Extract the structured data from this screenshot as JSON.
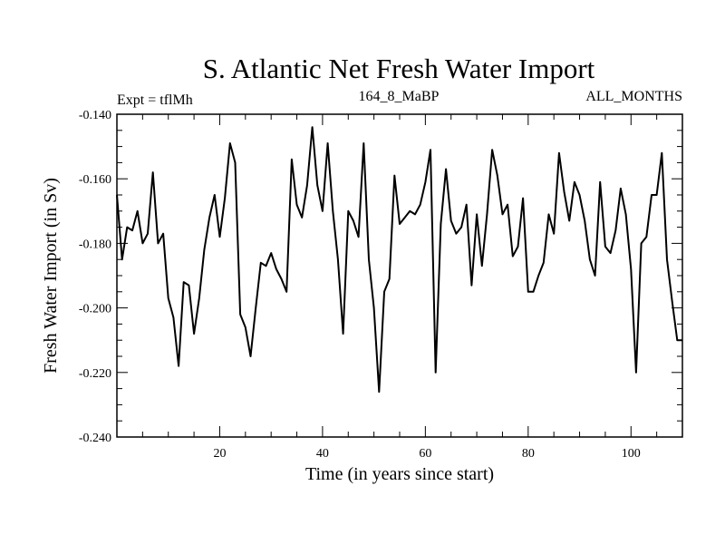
{
  "chart_data": {
    "type": "line",
    "title": "S. Atlantic Net Fresh Water Import",
    "left_subtitle": "Expt = tflMh",
    "center_subtitle": "164_8_MaBP",
    "right_subtitle": "ALL_MONTHS",
    "xlabel": "Time (in years since start)",
    "ylabel": "Fresh Water Import (in Sv)",
    "xlim": [
      0,
      110
    ],
    "ylim": [
      -0.24,
      -0.14
    ],
    "xticks_major": [
      20,
      40,
      60,
      80,
      100
    ],
    "xticks_minor": [
      5,
      10,
      15,
      25,
      30,
      35,
      45,
      50,
      55,
      65,
      70,
      75,
      85,
      90,
      95,
      105
    ],
    "yticks_major": [
      -0.24,
      -0.22,
      -0.2,
      -0.18,
      -0.16,
      -0.14
    ],
    "yticks_minor": [
      -0.235,
      -0.23,
      -0.225,
      -0.215,
      -0.21,
      -0.205,
      -0.195,
      -0.19,
      -0.185,
      -0.175,
      -0.17,
      -0.165,
      -0.155,
      -0.15,
      -0.145
    ],
    "xtick_labels": [
      "20",
      "40",
      "60",
      "80",
      "100"
    ],
    "ytick_labels": [
      "-0.240",
      "-0.220",
      "-0.200",
      "-0.180",
      "-0.160",
      "-0.140"
    ],
    "series": [
      {
        "name": "Net Fresh Water Import",
        "color": "#000000",
        "x": [
          0,
          1,
          2,
          3,
          4,
          5,
          6,
          7,
          8,
          9,
          10,
          11,
          12,
          13,
          14,
          15,
          16,
          17,
          18,
          19,
          20,
          21,
          22,
          23,
          24,
          25,
          26,
          27,
          28,
          29,
          30,
          31,
          32,
          33,
          34,
          35,
          36,
          37,
          38,
          39,
          40,
          41,
          42,
          43,
          44,
          45,
          46,
          47,
          48,
          49,
          50,
          51,
          52,
          53,
          54,
          55,
          56,
          57,
          58,
          59,
          60,
          61,
          62,
          63,
          64,
          65,
          66,
          67,
          68,
          69,
          70,
          71,
          72,
          73,
          74,
          75,
          76,
          77,
          78,
          79,
          80,
          81,
          82,
          83,
          84,
          85,
          86,
          87,
          88,
          89,
          90,
          91,
          92,
          93,
          94,
          95,
          96,
          97,
          98,
          99,
          100,
          101,
          102,
          103,
          104,
          105,
          106,
          107,
          108,
          109,
          110
        ],
        "values": [
          -0.165,
          -0.185,
          -0.175,
          -0.176,
          -0.17,
          -0.18,
          -0.177,
          -0.158,
          -0.18,
          -0.177,
          -0.197,
          -0.203,
          -0.218,
          -0.192,
          -0.193,
          -0.208,
          -0.197,
          -0.182,
          -0.172,
          -0.165,
          -0.178,
          -0.166,
          -0.149,
          -0.155,
          -0.202,
          -0.206,
          -0.215,
          -0.2,
          -0.186,
          -0.187,
          -0.183,
          -0.188,
          -0.191,
          -0.195,
          -0.154,
          -0.168,
          -0.172,
          -0.162,
          -0.144,
          -0.162,
          -0.17,
          -0.149,
          -0.17,
          -0.185,
          -0.208,
          -0.17,
          -0.173,
          -0.178,
          -0.149,
          -0.185,
          -0.2,
          -0.226,
          -0.195,
          -0.191,
          -0.159,
          -0.174,
          -0.172,
          -0.17,
          -0.171,
          -0.168,
          -0.161,
          -0.151,
          -0.22,
          -0.174,
          -0.157,
          -0.173,
          -0.177,
          -0.175,
          -0.168,
          -0.193,
          -0.171,
          -0.187,
          -0.171,
          -0.151,
          -0.159,
          -0.171,
          -0.168,
          -0.184,
          -0.181,
          -0.166,
          -0.195,
          -0.195,
          -0.19,
          -0.186,
          -0.171,
          -0.177,
          -0.152,
          -0.164,
          -0.173,
          -0.161,
          -0.165,
          -0.173,
          -0.185,
          -0.19,
          -0.161,
          -0.181,
          -0.183,
          -0.176,
          -0.163,
          -0.171,
          -0.188,
          -0.22,
          -0.18,
          -0.178,
          -0.165,
          -0.165,
          -0.152,
          -0.185,
          -0.198,
          -0.21,
          -0.21
        ]
      }
    ]
  }
}
